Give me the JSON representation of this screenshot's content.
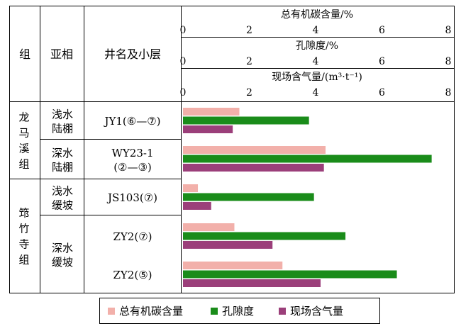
{
  "headers": {
    "group": "组",
    "subfacies": "亚相",
    "well": "井名及小层"
  },
  "chart_data": {
    "type": "bar",
    "orientation": "horizontal",
    "axes": [
      {
        "title": "总有机碳含量/%",
        "ticks": [
          "0",
          "2",
          "4",
          "6",
          "8"
        ],
        "range": [
          0,
          8
        ]
      },
      {
        "title": "孔隙度/%",
        "ticks": [
          "0",
          "2",
          "4",
          "6",
          "8"
        ],
        "range": [
          0,
          8
        ]
      },
      {
        "title": "现场含气量/(m³·t⁻¹)",
        "ticks": [
          "0",
          "2",
          "4",
          "6",
          "8"
        ],
        "range": [
          0,
          8
        ]
      }
    ],
    "categories": [
      {
        "line1": "JY1(⑥—⑦)",
        "line2": ""
      },
      {
        "line1": "WY23-1",
        "line2": "(②—③)"
      },
      {
        "line1": "JS103(⑦)",
        "line2": ""
      },
      {
        "line1": "ZY2(⑦)",
        "line2": ""
      },
      {
        "line1": "ZY2(⑤)",
        "line2": ""
      }
    ],
    "series": [
      {
        "name": "总有机碳含量",
        "color": "#f2b0aa",
        "values": [
          1.7,
          4.3,
          0.45,
          1.55,
          3.0
        ]
      },
      {
        "name": "孔隙度",
        "color": "#1a8c1a",
        "values": [
          3.8,
          7.5,
          3.95,
          4.9,
          6.45
        ]
      },
      {
        "name": "现场含气量",
        "color": "#9b3f7a",
        "values": [
          1.5,
          4.25,
          0.85,
          2.7,
          4.15
        ]
      }
    ]
  },
  "groups": [
    {
      "name": "龙马溪组",
      "chars": [
        "龙",
        "马",
        "溪",
        "组"
      ]
    },
    {
      "name": "筇竹寺组",
      "chars": [
        "筇",
        "竹",
        "寺",
        "组"
      ]
    }
  ],
  "subfacies": [
    {
      "line1": "浅水",
      "line2": "陆棚"
    },
    {
      "line1": "深水",
      "line2": "陆棚"
    },
    {
      "line1": "浅水",
      "line2": "缓坡"
    },
    {
      "line1": "深水",
      "line2": "缓坡"
    }
  ]
}
